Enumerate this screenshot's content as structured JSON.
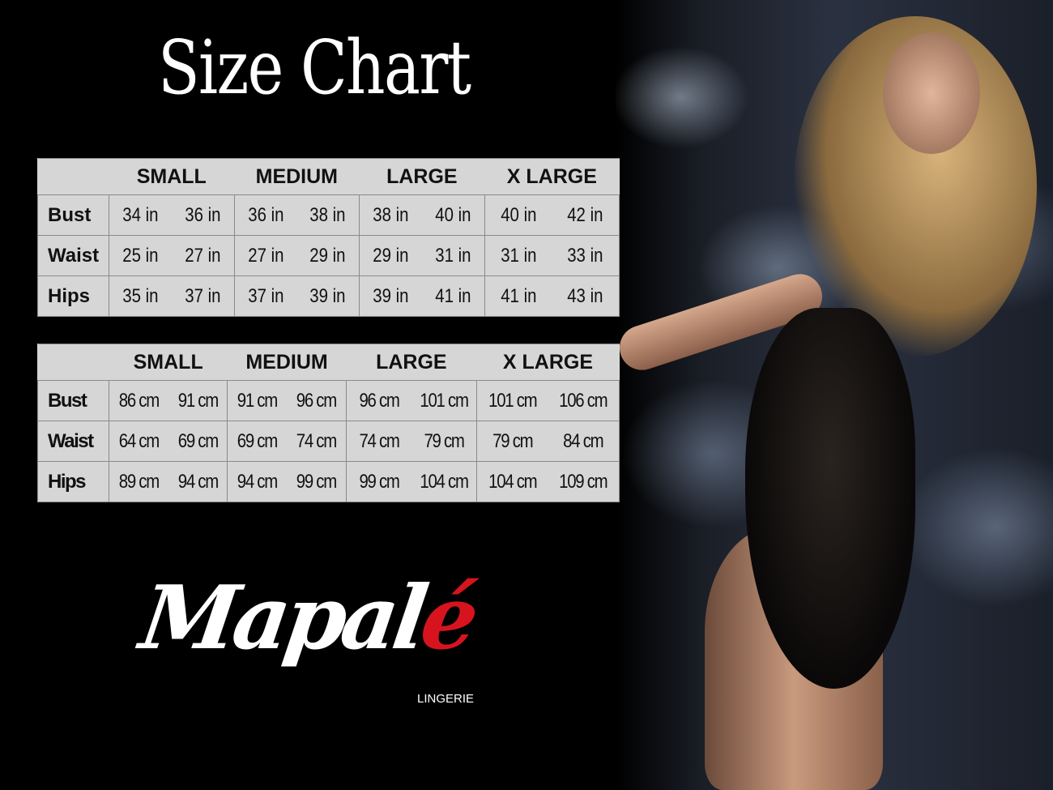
{
  "title": "Size Chart",
  "sizes": [
    "SMALL",
    "MEDIUM",
    "LARGE",
    "X LARGE"
  ],
  "tables": {
    "inches": {
      "rows": [
        {
          "label": "Bust",
          "values": [
            "34 in",
            "36 in",
            "36 in",
            "38 in",
            "38 in",
            "40 in",
            "40 in",
            "42 in"
          ]
        },
        {
          "label": "Waist",
          "values": [
            "25 in",
            "27 in",
            "27 in",
            "29 in",
            "29 in",
            "31 in",
            "31 in",
            "33 in"
          ]
        },
        {
          "label": "Hips",
          "values": [
            "35 in",
            "37 in",
            "37 in",
            "39 in",
            "39 in",
            "41 in",
            "41 in",
            "43 in"
          ]
        }
      ]
    },
    "centimeters": {
      "rows": [
        {
          "label": "Bust",
          "values": [
            "86 cm",
            "91 cm",
            "91 cm",
            "96 cm",
            "96 cm",
            "101 cm",
            "101 cm",
            "106 cm"
          ]
        },
        {
          "label": "Waist",
          "values": [
            "64 cm",
            "69 cm",
            "69 cm",
            "74 cm",
            "74 cm",
            "79  cm",
            "79 cm",
            "84 cm"
          ]
        },
        {
          "label": "Hips",
          "values": [
            "89 cm",
            "94 cm",
            "94 cm",
            "99 cm",
            "99 cm",
            "104 cm",
            "104 cm",
            "109 cm"
          ]
        }
      ]
    }
  },
  "brand": {
    "name_main": "Mapal",
    "name_accent": "é",
    "subtitle": "LINGERIE",
    "accent_color": "#d7141e"
  }
}
